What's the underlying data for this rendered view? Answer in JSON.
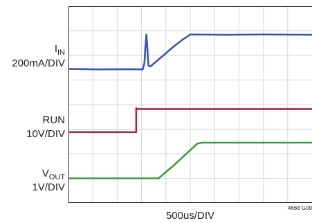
{
  "chart_data": {
    "type": "line",
    "title": "",
    "x_scale_label": "500us/DIV",
    "figure_id": "4668 G09",
    "x_divisions": 10,
    "y_divisions": 8,
    "grid": true,
    "x_unit": "div",
    "x_range": [
      0,
      10
    ],
    "channels": [
      {
        "name_main": "I",
        "name_sub": "IN",
        "scale": "200mA/DIV",
        "color": "#3a55b0",
        "y_div": [
          [
            0,
            5.45
          ],
          [
            1.2,
            5.43
          ],
          [
            2.6,
            5.44
          ],
          [
            3.05,
            5.43
          ],
          [
            3.12,
            5.7
          ],
          [
            3.16,
            6.35
          ],
          [
            3.2,
            6.85
          ],
          [
            3.24,
            6.3
          ],
          [
            3.28,
            5.6
          ],
          [
            3.36,
            5.55
          ],
          [
            3.6,
            5.75
          ],
          [
            3.9,
            6.0
          ],
          [
            4.3,
            6.35
          ],
          [
            4.7,
            6.65
          ],
          [
            5.0,
            6.85
          ],
          [
            6.5,
            6.84
          ],
          [
            8.0,
            6.85
          ],
          [
            10,
            6.84
          ]
        ]
      },
      {
        "name_main": "RUN",
        "name_sub": "",
        "scale": "10V/DIV",
        "color": "#a82848",
        "y_div": [
          [
            0,
            2.88
          ],
          [
            2.78,
            2.88
          ],
          [
            2.78,
            3.85
          ],
          [
            2.84,
            3.82
          ],
          [
            10,
            3.82
          ]
        ]
      },
      {
        "name_main": "V",
        "name_sub": "OUT",
        "scale": "1V/DIV",
        "color": "#3e9a40",
        "y_div": [
          [
            0,
            1.0
          ],
          [
            3.7,
            1.0
          ],
          [
            4.35,
            1.55
          ],
          [
            5.3,
            2.42
          ],
          [
            5.5,
            2.45
          ],
          [
            10,
            2.45
          ]
        ]
      }
    ]
  }
}
